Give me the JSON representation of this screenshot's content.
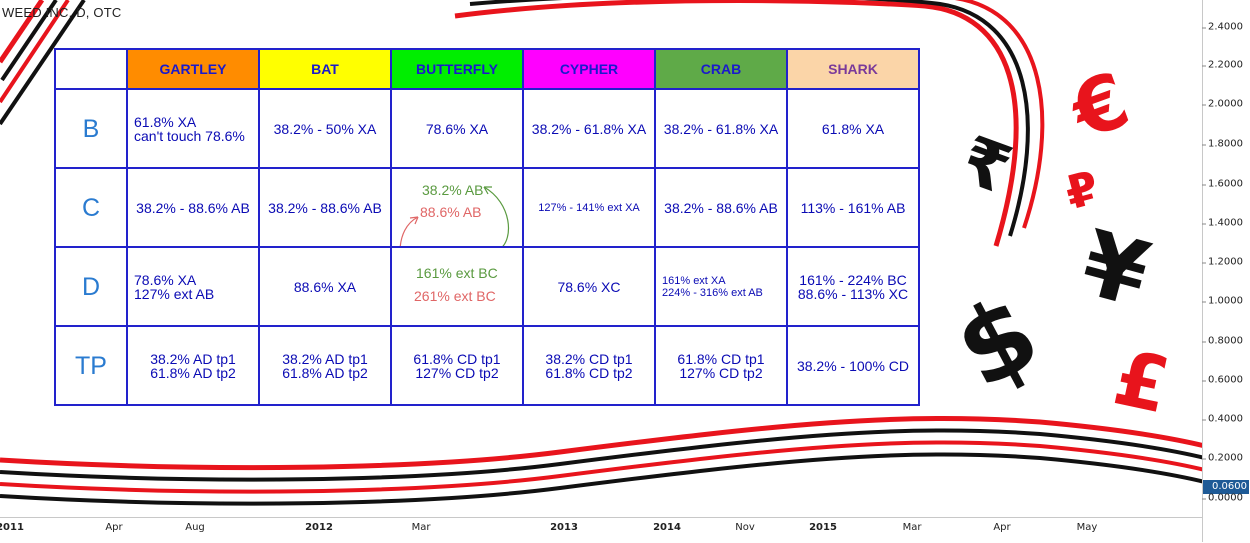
{
  "chart_title": "WEED INC, D, OTC",
  "price_axis": {
    "ticks": [
      "2.4000",
      "2.2000",
      "2.0000",
      "1.8000",
      "1.6000",
      "1.4000",
      "1.2000",
      "1.0000",
      "0.8000",
      "0.6000",
      "0.4000",
      "0.2000",
      "0.0000"
    ],
    "last_price": "0.0600"
  },
  "time_axis": {
    "labels": [
      {
        "text": "2011",
        "bold": true
      },
      {
        "text": "Apr",
        "bold": false
      },
      {
        "text": "Aug",
        "bold": false
      },
      {
        "text": "2012",
        "bold": true
      },
      {
        "text": "Mar",
        "bold": false
      },
      {
        "text": "2013",
        "bold": true
      },
      {
        "text": "2014",
        "bold": true
      },
      {
        "text": "Nov",
        "bold": false
      },
      {
        "text": "2015",
        "bold": true
      },
      {
        "text": "Mar",
        "bold": false
      },
      {
        "text": "Apr",
        "bold": false
      },
      {
        "text": "May",
        "bold": false
      }
    ]
  },
  "chart_data": {
    "type": "table",
    "columns": [
      {
        "label": "GARTLEY",
        "bg": "#ff8c00",
        "color": "#1a1acc"
      },
      {
        "label": "BAT",
        "bg": "#ffff00",
        "color": "#1a1acc"
      },
      {
        "label": "BUTTERFLY",
        "bg": "#00ee00",
        "color": "#1a1acc"
      },
      {
        "label": "CYPHER",
        "bg": "#ff00ff",
        "color": "#1a1acc"
      },
      {
        "label": "CRAB",
        "bg": "#5faa48",
        "color": "#1a1acc"
      },
      {
        "label": "SHARK",
        "bg": "#fbd5a8",
        "color": "#7a3a9a"
      }
    ],
    "rows": [
      {
        "label": "B",
        "cells": [
          "61.8% XA\ncan't  touch 78.6%",
          "38.2% - 50% XA",
          "78.6% XA",
          "38.2% - 61.8% XA",
          "38.2% - 61.8% XA",
          "61.8% XA"
        ]
      },
      {
        "label": "C",
        "cells": [
          "38.2% - 88.6% AB",
          "38.2% - 88.6% AB",
          "",
          "127% - 141% ext XA",
          "38.2% - 88.6% AB",
          "113% - 161% AB"
        ]
      },
      {
        "label": "D",
        "cells": [
          "78.6% XA\n127% ext AB",
          "88.6% XA",
          "",
          "78.6% XC",
          "161% ext XA\n224% - 316% ext AB",
          "161% - 224% BC\n88.6% - 113% XC"
        ]
      },
      {
        "label": "TP",
        "cells": [
          "38.2% AD tp1\n61.8% AD tp2",
          "38.2% AD tp1\n61.8% AD tp2",
          "61.8% CD tp1\n127% CD tp2",
          "38.2%  CD tp1\n61.8% CD tp2",
          "61.8% CD tp1\n127% CD tp2",
          "38.2% - 100% CD"
        ]
      }
    ],
    "butterfly_c": {
      "green": "38.2% AB",
      "red": "88.6% AB"
    },
    "butterfly_d": {
      "green": "161% ext BC",
      "red": "261% ext BC"
    }
  },
  "colors": {
    "red": "#e8141c",
    "black": "#111111",
    "table_border": "#2222cc",
    "text_blue": "#0a0ab4",
    "green_text": "#5a9a40",
    "red_text": "#e06666"
  },
  "icons": [
    "rupee-sign-icon",
    "euro-sign-icon",
    "ruble-sign-icon",
    "yen-sign-icon",
    "dollar-sign-icon",
    "pound-sign-icon"
  ]
}
